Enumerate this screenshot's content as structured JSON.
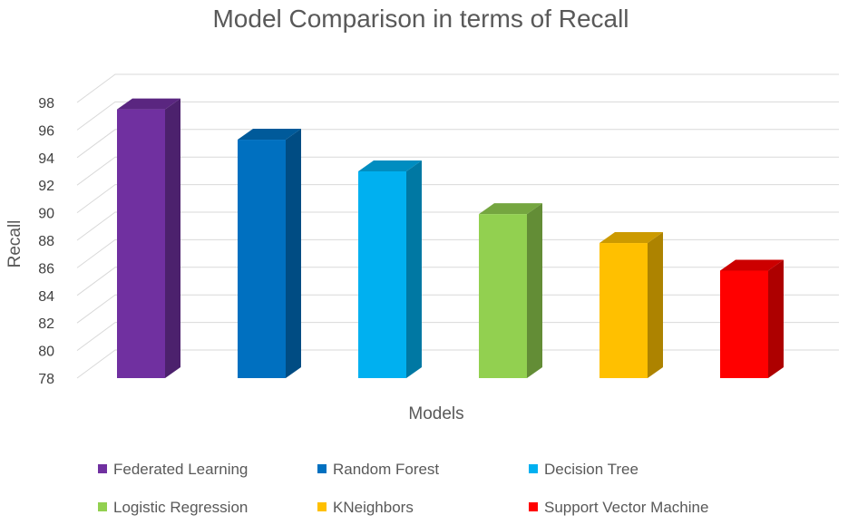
{
  "chart_data": {
    "type": "bar",
    "title": "Model Comparison in terms of Recall",
    "xlabel": "Models",
    "ylabel": "Recall",
    "ylim": [
      78,
      98
    ],
    "yticks": [
      78,
      80,
      82,
      84,
      86,
      88,
      90,
      92,
      94,
      96,
      98
    ],
    "grid": true,
    "three_d": true,
    "legend_position": "bottom",
    "categories": [
      "Federated Learning",
      "Random Forest",
      "Decision Tree",
      "Logistic Regression",
      "KNeighbors",
      "Support Vector Machine"
    ],
    "values": [
      97.5,
      95.3,
      93.0,
      89.9,
      87.8,
      85.8
    ],
    "colors": [
      "#7030A0",
      "#0070C0",
      "#00B0F0",
      "#92D050",
      "#FFC000",
      "#FF0000"
    ]
  }
}
